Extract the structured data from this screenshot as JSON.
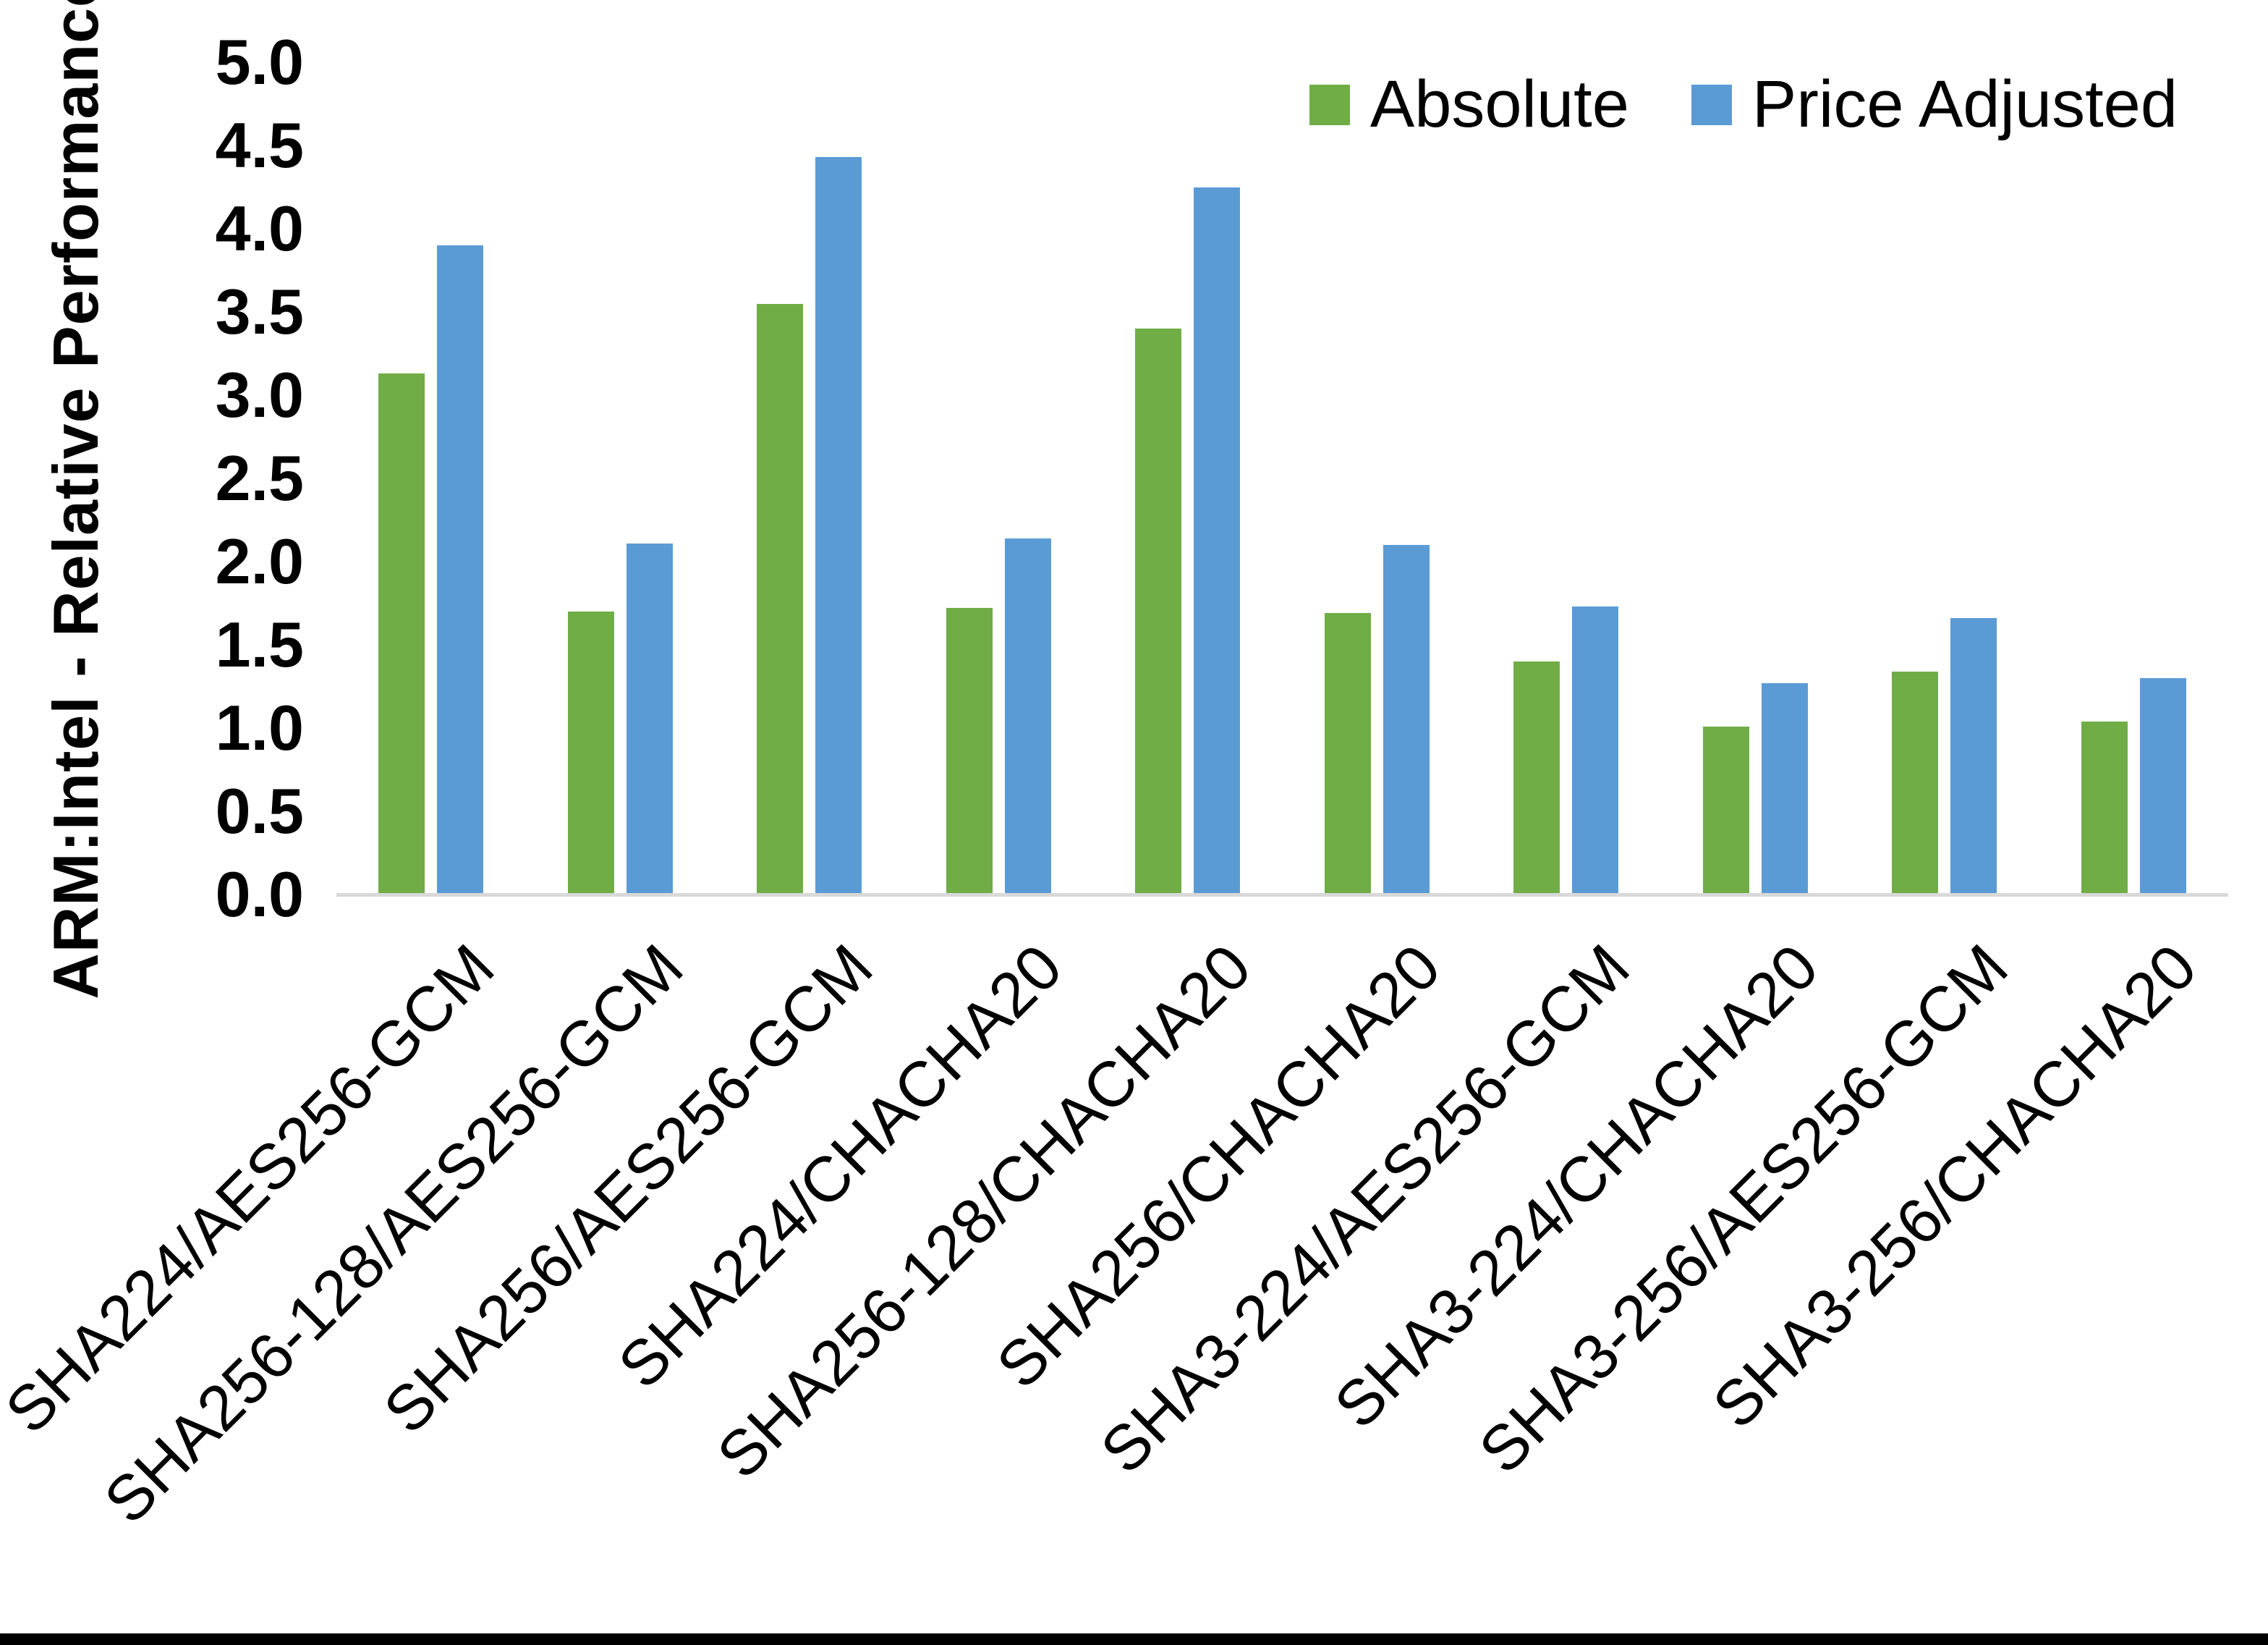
{
  "figure": {
    "background_color": "#FFFFFF",
    "axis_line_color": "#D9D9D9",
    "bottom_border_color": "#000000",
    "text_color": "#000000"
  },
  "chart_data": {
    "type": "bar",
    "title": "",
    "xlabel": "",
    "ylabel": "ARM:Intel - Relative Performance",
    "ylim": [
      0.0,
      5.0
    ],
    "ytick_labels": [
      "0.0",
      "0.5",
      "1.0",
      "1.5",
      "2.0",
      "2.5",
      "3.0",
      "3.5",
      "4.0",
      "4.5",
      "5.0"
    ],
    "grid": false,
    "legend_position": "top-right",
    "categories": [
      "SHA224/AES256-GCM",
      "SHA256-128/AES256-GCM",
      "SHA256/AES256-GCM",
      "SHA224/CHACHA20",
      "SHA256-128/CHACHA20",
      "SHA256/CHACHA20",
      "SHA3-224/AES256-GCM",
      "SHA3-224/CHACHA20",
      "SHA3-256/AES256-GCM",
      "SHA3-256/CHACHA20"
    ],
    "series": [
      {
        "name": "Absolute",
        "color": "#70AD47",
        "values": [
          3.13,
          1.7,
          3.55,
          1.72,
          3.4,
          1.69,
          1.4,
          1.01,
          1.34,
          1.04
        ]
      },
      {
        "name": "Price Adjusted",
        "color": "#5B9BD5",
        "values": [
          3.9,
          2.11,
          4.43,
          2.14,
          4.25,
          2.1,
          1.73,
          1.27,
          1.66,
          1.3
        ]
      }
    ]
  }
}
